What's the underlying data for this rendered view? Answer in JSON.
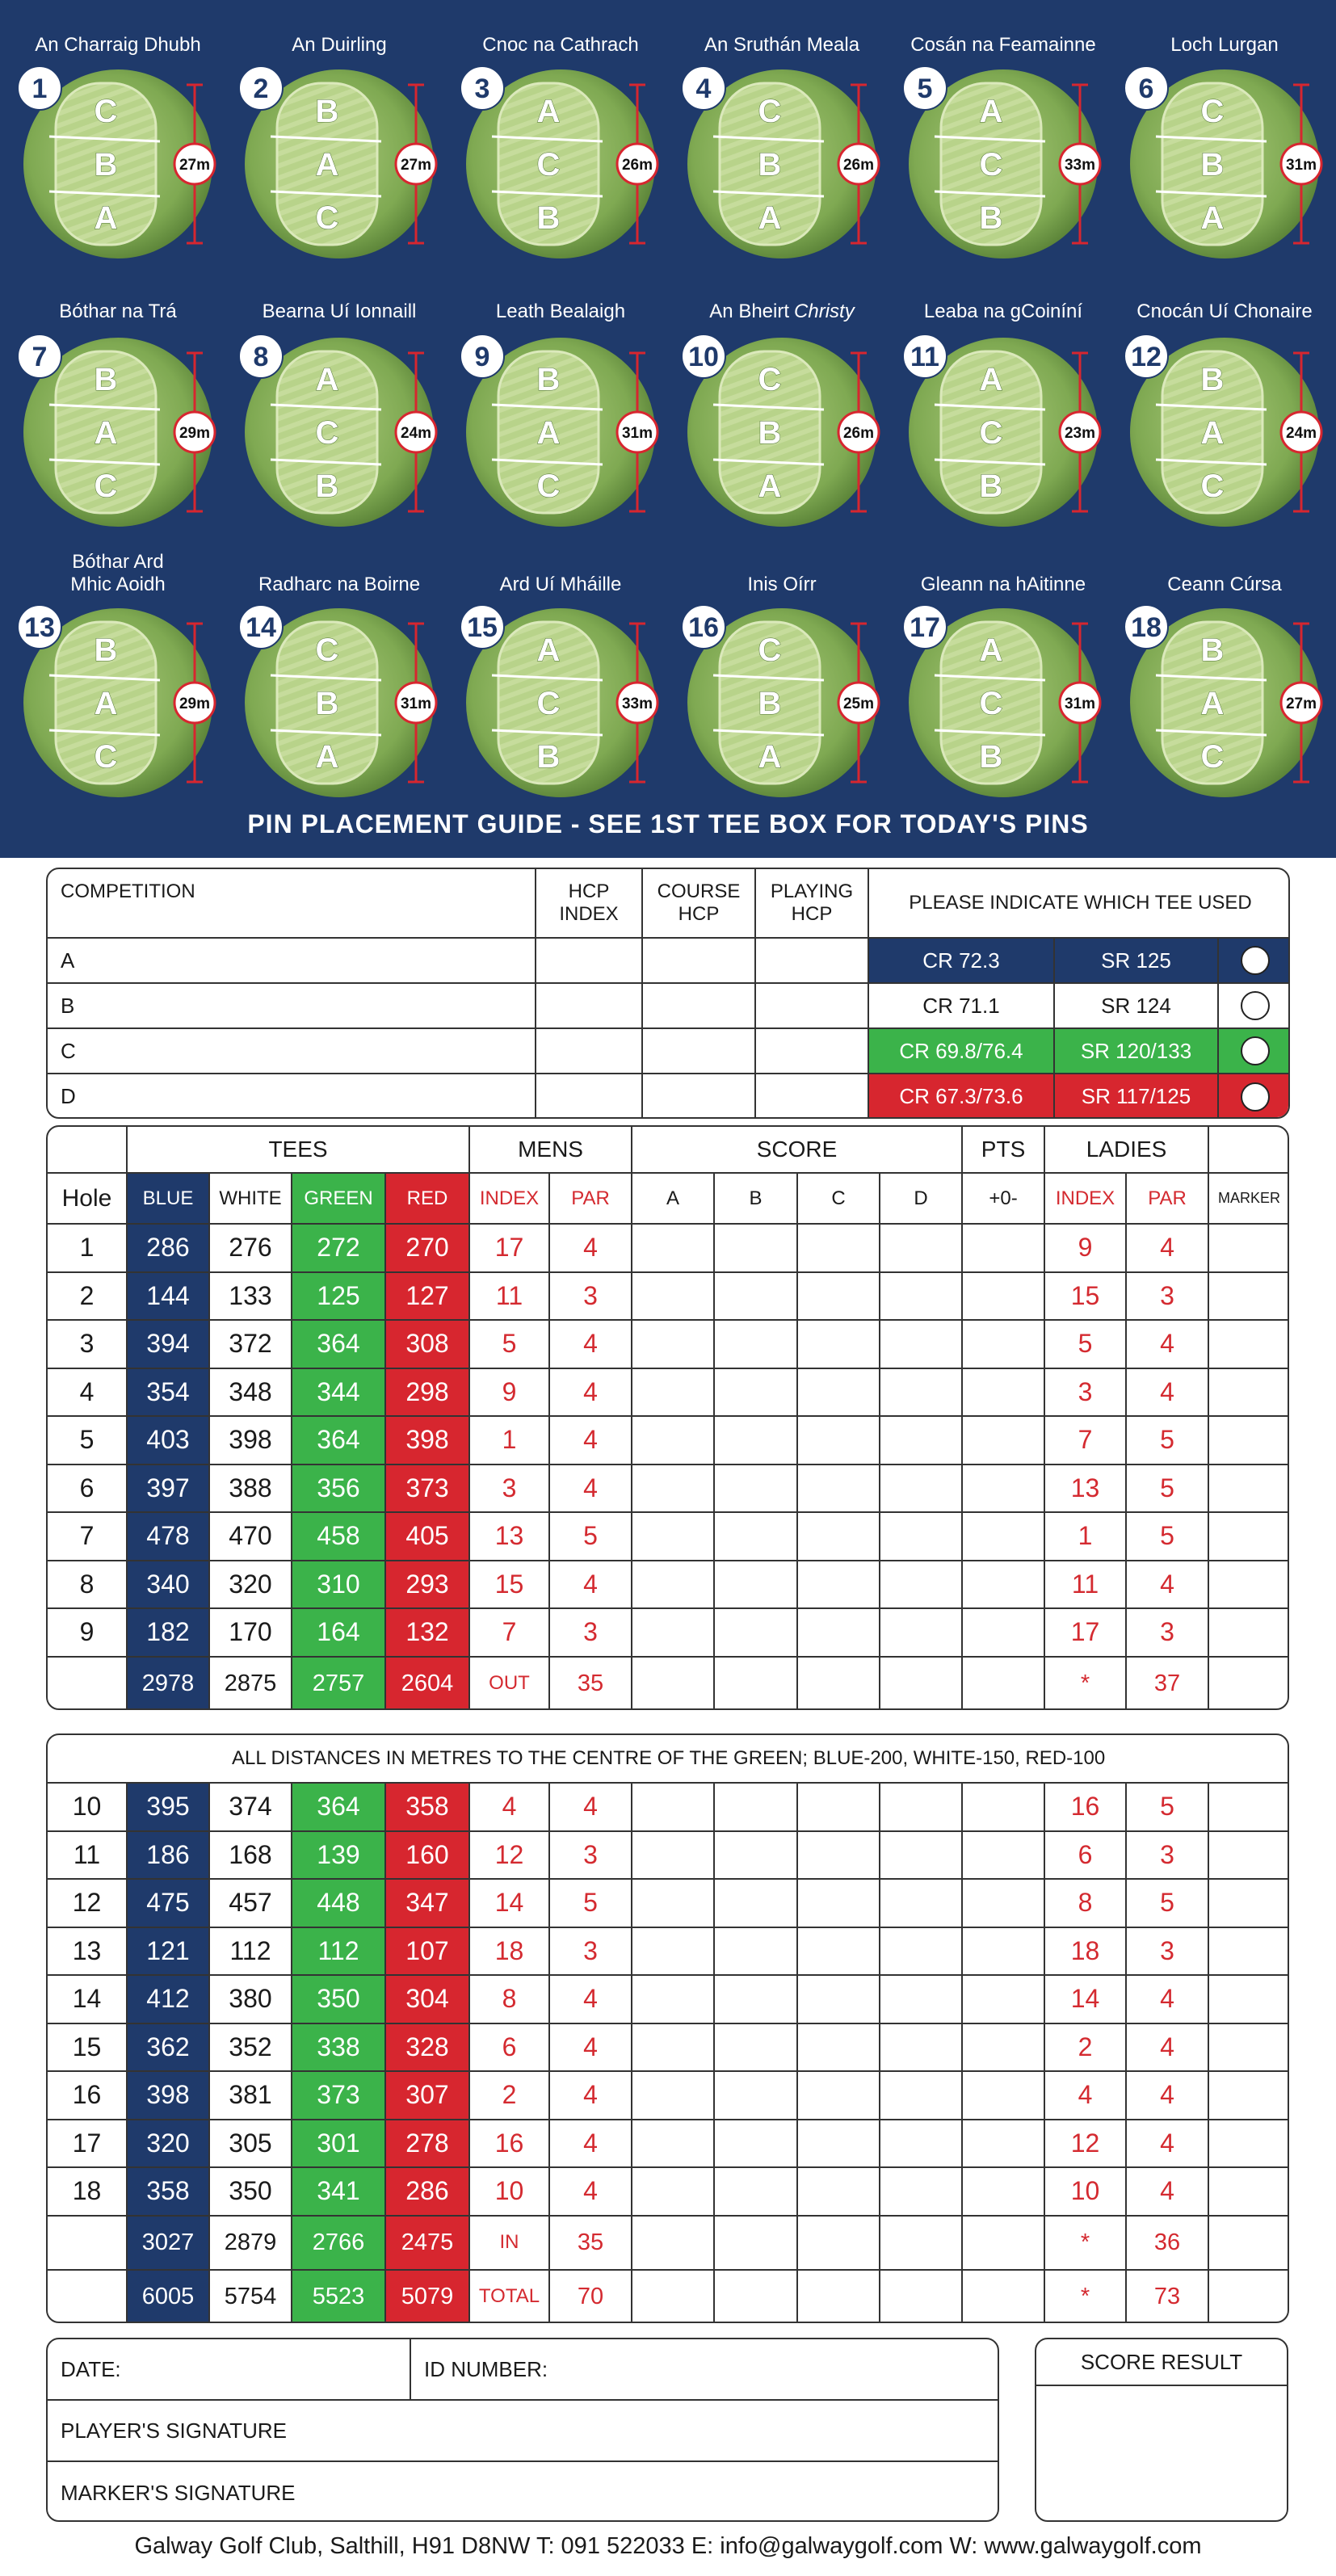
{
  "guide": {
    "holes": [
      {
        "number": 1,
        "name": "An Charraig Dhubh",
        "labels": [
          "C",
          "B",
          "A"
        ],
        "length": "27m"
      },
      {
        "number": 2,
        "name": "An Duirling",
        "labels": [
          "B",
          "A",
          "C"
        ],
        "length": "27m"
      },
      {
        "number": 3,
        "name": "Cnoc na Cathrach",
        "labels": [
          "A",
          "C",
          "B"
        ],
        "length": "26m"
      },
      {
        "number": 4,
        "name": "An Sruthán Meala",
        "labels": [
          "C",
          "B",
          "A"
        ],
        "length": "26m"
      },
      {
        "number": 5,
        "name": "Cosán na Feamainne",
        "labels": [
          "A",
          "C",
          "B"
        ],
        "length": "33m"
      },
      {
        "number": 6,
        "name": "Loch Lurgan",
        "labels": [
          "C",
          "B",
          "A"
        ],
        "length": "31m"
      },
      {
        "number": 7,
        "name": "Bóthar na Trá",
        "labels": [
          "B",
          "A",
          "C"
        ],
        "length": "29m"
      },
      {
        "number": 8,
        "name": "Bearna Uí Ionnaill",
        "labels": [
          "A",
          "C",
          "B"
        ],
        "length": "24m"
      },
      {
        "number": 9,
        "name": "Leath Bealaigh",
        "labels": [
          "B",
          "A",
          "C"
        ],
        "length": "31m"
      },
      {
        "number": 10,
        "name": "An Bheirt",
        "name_em": "Christy",
        "labels": [
          "C",
          "B",
          "A"
        ],
        "length": "26m"
      },
      {
        "number": 11,
        "name": "Leaba na gCoiníní",
        "labels": [
          "A",
          "C",
          "B"
        ],
        "length": "23m"
      },
      {
        "number": 12,
        "name": "Cnocán Uí Chonaire",
        "labels": [
          "B",
          "A",
          "C"
        ],
        "length": "24m"
      },
      {
        "number": 13,
        "name": "Bóthar Ard Mhic Aoidh",
        "labels": [
          "B",
          "A",
          "C"
        ],
        "length": "29m"
      },
      {
        "number": 14,
        "name": "Radharc na Boirne",
        "labels": [
          "C",
          "B",
          "A"
        ],
        "length": "31m"
      },
      {
        "number": 15,
        "name": "Ard Uí Mháille",
        "labels": [
          "A",
          "C",
          "B"
        ],
        "length": "33m"
      },
      {
        "number": 16,
        "name": "Inis Oírr",
        "labels": [
          "C",
          "B",
          "A"
        ],
        "length": "25m"
      },
      {
        "number": 17,
        "name": "Gleann na hAitinne",
        "labels": [
          "A",
          "C",
          "B"
        ],
        "length": "31m"
      },
      {
        "number": 18,
        "name": "Ceann Cúrsa",
        "labels": [
          "B",
          "A",
          "C"
        ],
        "length": "27m"
      }
    ],
    "footer": "PIN PLACEMENT GUIDE - SEE 1ST TEE BOX FOR TODAY'S PINS"
  },
  "competition": {
    "headers": [
      "COMPETITION",
      "HCP INDEX",
      "COURSE HCP",
      "PLAYING HCP",
      "PLEASE INDICATE WHICH TEE USED"
    ],
    "rows": [
      {
        "tee": "A",
        "cr": "CR 72.3",
        "sr": "SR 125"
      },
      {
        "tee": "B",
        "cr": "CR 71.1",
        "sr": "SR 124"
      },
      {
        "tee": "C",
        "cr": "CR 69.8/76.4",
        "sr": "SR 120/133"
      },
      {
        "tee": "D",
        "cr": "CR 67.3/73.6",
        "sr": "SR 117/125"
      }
    ]
  },
  "scorecard": {
    "groups": [
      "TEES",
      "MENS",
      "SCORE",
      "PTS",
      "LADIES"
    ],
    "columns": [
      "Hole",
      "BLUE",
      "WHITE",
      "GREEN",
      "RED",
      "INDEX",
      "PAR",
      "A",
      "B",
      "C",
      "D",
      "+0-",
      "INDEX",
      "PAR",
      "MARKER"
    ],
    "front_nine": [
      [
        1,
        286,
        276,
        272,
        270,
        17,
        4,
        9,
        4
      ],
      [
        2,
        144,
        133,
        125,
        127,
        11,
        3,
        15,
        3
      ],
      [
        3,
        394,
        372,
        364,
        308,
        5,
        4,
        5,
        4
      ],
      [
        4,
        354,
        348,
        344,
        298,
        9,
        4,
        3,
        4
      ],
      [
        5,
        403,
        398,
        364,
        398,
        1,
        4,
        7,
        5
      ],
      [
        6,
        397,
        388,
        356,
        373,
        3,
        4,
        13,
        5
      ],
      [
        7,
        478,
        470,
        458,
        405,
        13,
        5,
        1,
        5
      ],
      [
        8,
        340,
        320,
        310,
        293,
        15,
        4,
        11,
        4
      ],
      [
        9,
        182,
        170,
        164,
        132,
        7,
        3,
        17,
        3
      ]
    ],
    "out": [
      2978,
      2875,
      2757,
      2604,
      "OUT",
      35,
      "*",
      37
    ],
    "note": "ALL DISTANCES IN METRES TO THE CENTRE OF THE GREEN; BLUE-200, WHITE-150, RED-100",
    "back_nine": [
      [
        10,
        395,
        374,
        364,
        358,
        4,
        4,
        16,
        5
      ],
      [
        11,
        186,
        168,
        139,
        160,
        12,
        3,
        6,
        3
      ],
      [
        12,
        475,
        457,
        448,
        347,
        14,
        5,
        8,
        5
      ],
      [
        13,
        121,
        112,
        112,
        107,
        18,
        3,
        18,
        3
      ],
      [
        14,
        412,
        380,
        350,
        304,
        8,
        4,
        14,
        4
      ],
      [
        15,
        362,
        352,
        338,
        328,
        6,
        4,
        2,
        4
      ],
      [
        16,
        398,
        381,
        373,
        307,
        2,
        4,
        4,
        4
      ],
      [
        17,
        320,
        305,
        301,
        278,
        16,
        4,
        12,
        4
      ],
      [
        18,
        358,
        350,
        341,
        286,
        10,
        4,
        10,
        4
      ]
    ],
    "in": [
      3027,
      2879,
      2766,
      2475,
      "IN",
      35,
      "*",
      36
    ],
    "total": [
      6005,
      5754,
      5523,
      5079,
      "TOTAL",
      70,
      "*",
      73
    ]
  },
  "signature": {
    "date": "DATE:",
    "id_number": "ID NUMBER:",
    "player": "PLAYER'S SIGNATURE",
    "marker": "MARKER'S SIGNATURE",
    "score_result": "SCORE RESULT"
  },
  "footer": "Galway Golf Club, Salthill, H91 D8NW T: 091 522033 E: info@galwaygolf.com W: www.galwaygolf.com"
}
